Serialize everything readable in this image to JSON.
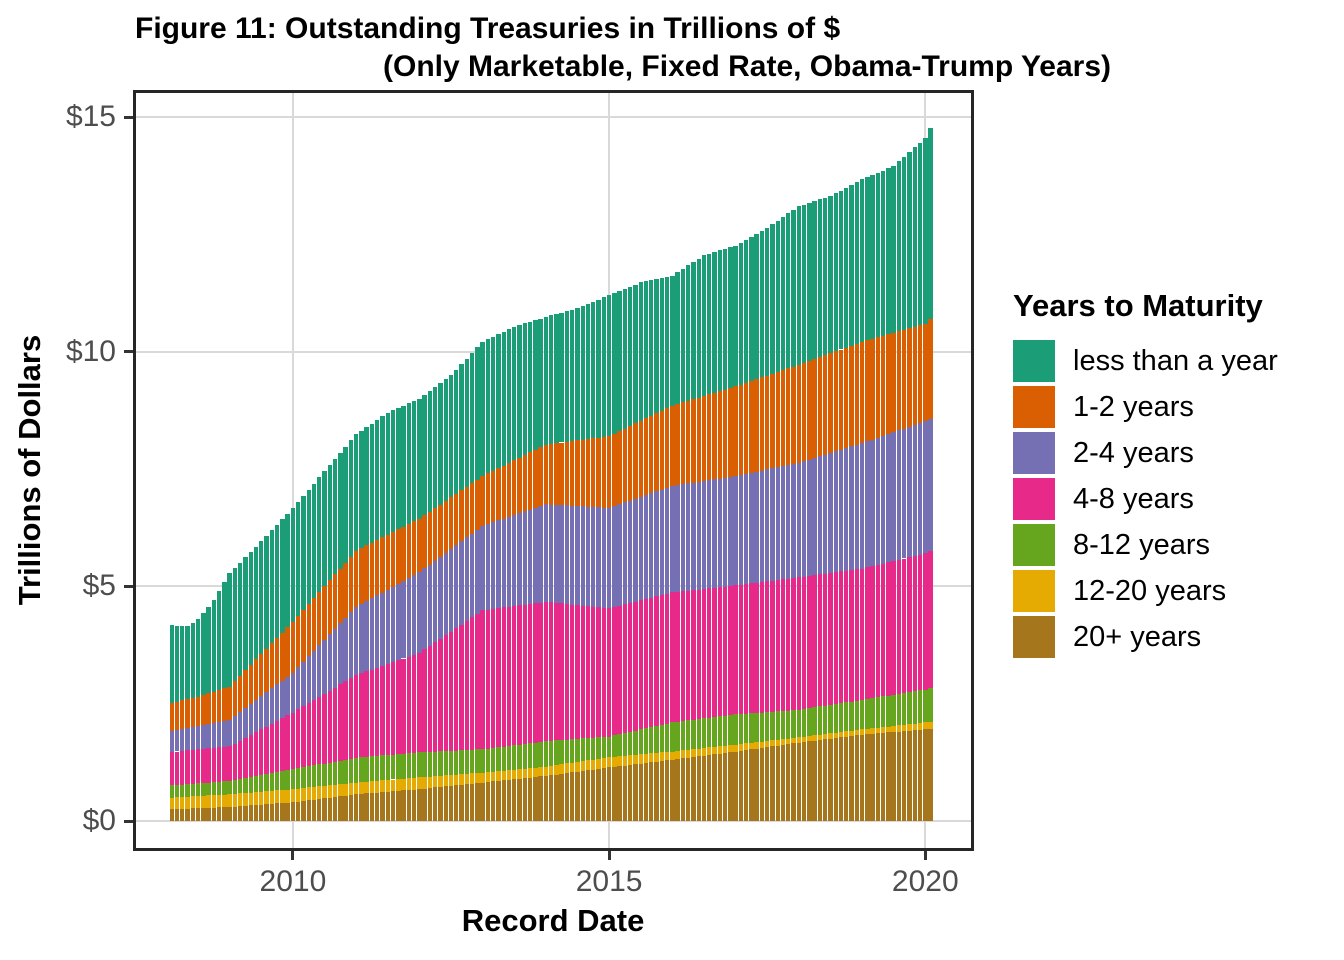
{
  "chart_data": {
    "type": "bar",
    "stacked": true,
    "title_line1": "Figure 11: Outstanding Treasuries in Trillions of $",
    "title_line2": "(Only Marketable, Fixed Rate, Obama-Trump Years)",
    "xlabel": "Record Date",
    "ylabel": "Trillions of Dollars",
    "units": "trillions of US dollars",
    "bar_interval": "monthly",
    "first_bar": "2008-02",
    "last_bar": "2020-02",
    "ylim": [
      0,
      15.6
    ],
    "grid": "major-only",
    "legend_title": "Years to Maturity",
    "legend_position": "right",
    "y_ticks": [
      {
        "value": 0,
        "label": "$0"
      },
      {
        "value": 5,
        "label": "$5"
      },
      {
        "value": 10,
        "label": "$10"
      },
      {
        "value": 15,
        "label": "$15"
      }
    ],
    "x_ticks": [
      {
        "date": "2010-01",
        "label": "2010"
      },
      {
        "date": "2015-01",
        "label": "2015"
      },
      {
        "date": "2020-01",
        "label": "2020"
      }
    ],
    "series_note": "series listed bottom-to-top of stack; anchors are [month, value-in-trillions]; monthly bars linearly interpolated between anchors; legend shows series top-to-bottom",
    "series": [
      {
        "name": "20-plus-years",
        "label": "20+ years",
        "color": "#A6761D",
        "anchors": [
          [
            "2008-02",
            0.25
          ],
          [
            "2009-01",
            0.3
          ],
          [
            "2010-01",
            0.4
          ],
          [
            "2011-01",
            0.57
          ],
          [
            "2012-01",
            0.68
          ],
          [
            "2013-01",
            0.82
          ],
          [
            "2014-01",
            0.96
          ],
          [
            "2015-01",
            1.14
          ],
          [
            "2016-01",
            1.31
          ],
          [
            "2017-01",
            1.48
          ],
          [
            "2018-01",
            1.67
          ],
          [
            "2019-01",
            1.84
          ],
          [
            "2020-01",
            1.95
          ],
          [
            "2020-02",
            1.96
          ]
        ]
      },
      {
        "name": "12-20-years",
        "label": "12-20 years",
        "color": "#E6AB02",
        "anchors": [
          [
            "2008-02",
            0.25
          ],
          [
            "2009-01",
            0.27
          ],
          [
            "2010-01",
            0.28
          ],
          [
            "2011-01",
            0.25
          ],
          [
            "2012-01",
            0.25
          ],
          [
            "2013-01",
            0.21
          ],
          [
            "2014-01",
            0.2
          ],
          [
            "2015-01",
            0.22
          ],
          [
            "2016-01",
            0.17
          ],
          [
            "2017-01",
            0.15
          ],
          [
            "2018-01",
            0.11
          ],
          [
            "2019-01",
            0.11
          ],
          [
            "2020-01",
            0.15
          ],
          [
            "2020-02",
            0.16
          ]
        ]
      },
      {
        "name": "8-12-years",
        "label": "8-12 years",
        "color": "#66A61E",
        "anchors": [
          [
            "2008-02",
            0.26
          ],
          [
            "2009-01",
            0.28
          ],
          [
            "2010-01",
            0.42
          ],
          [
            "2011-01",
            0.53
          ],
          [
            "2012-01",
            0.53
          ],
          [
            "2013-01",
            0.5
          ],
          [
            "2014-01",
            0.54
          ],
          [
            "2015-01",
            0.44
          ],
          [
            "2016-01",
            0.62
          ],
          [
            "2017-01",
            0.64
          ],
          [
            "2018-01",
            0.59
          ],
          [
            "2019-01",
            0.63
          ],
          [
            "2020-01",
            0.7
          ],
          [
            "2020-02",
            0.72
          ]
        ]
      },
      {
        "name": "4-8-years",
        "label": "4-8 years",
        "color": "#E7298A",
        "anchors": [
          [
            "2008-02",
            0.71
          ],
          [
            "2009-01",
            0.74
          ],
          [
            "2010-01",
            1.21
          ],
          [
            "2011-01",
            1.76
          ],
          [
            "2012-01",
            2.12
          ],
          [
            "2013-01",
            2.96
          ],
          [
            "2014-01",
            2.97
          ],
          [
            "2015-01",
            2.73
          ],
          [
            "2016-01",
            2.77
          ],
          [
            "2017-01",
            2.75
          ],
          [
            "2018-01",
            2.82
          ],
          [
            "2019-01",
            2.8
          ],
          [
            "2020-01",
            2.9
          ],
          [
            "2020-02",
            2.92
          ]
        ]
      },
      {
        "name": "2-4-years",
        "label": "2-4 years",
        "color": "#7570B3",
        "anchors": [
          [
            "2008-02",
            0.45
          ],
          [
            "2009-01",
            0.57
          ],
          [
            "2010-01",
            0.85
          ],
          [
            "2011-01",
            1.45
          ],
          [
            "2012-01",
            1.72
          ],
          [
            "2013-01",
            1.8
          ],
          [
            "2014-01",
            2.08
          ],
          [
            "2015-01",
            2.14
          ],
          [
            "2016-01",
            2.27
          ],
          [
            "2017-01",
            2.33
          ],
          [
            "2018-01",
            2.44
          ],
          [
            "2019-01",
            2.67
          ],
          [
            "2020-01",
            2.82
          ],
          [
            "2020-02",
            2.8
          ]
        ]
      },
      {
        "name": "1-2-years",
        "label": "1-2 years",
        "color": "#D95F02",
        "anchors": [
          [
            "2008-02",
            0.6
          ],
          [
            "2008-07",
            0.62
          ],
          [
            "2009-01",
            0.7
          ],
          [
            "2009-07",
            0.9
          ],
          [
            "2010-01",
            1.08
          ],
          [
            "2011-01",
            1.2
          ],
          [
            "2012-01",
            1.14
          ],
          [
            "2013-01",
            1.06
          ],
          [
            "2014-01",
            1.27
          ],
          [
            "2015-01",
            1.53
          ],
          [
            "2016-01",
            1.71
          ],
          [
            "2017-01",
            1.91
          ],
          [
            "2018-01",
            2.09
          ],
          [
            "2019-01",
            2.16
          ],
          [
            "2020-01",
            2.08
          ],
          [
            "2020-02",
            2.13
          ]
        ]
      },
      {
        "name": "less-than-a-year",
        "label": "less than a year",
        "color": "#1B9E77",
        "anchors": [
          [
            "2008-02",
            1.65
          ],
          [
            "2008-05",
            1.55
          ],
          [
            "2008-07",
            1.65
          ],
          [
            "2008-10",
            1.95
          ],
          [
            "2009-01",
            2.42
          ],
          [
            "2009-07",
            2.4
          ],
          [
            "2010-01",
            2.43
          ],
          [
            "2010-07",
            2.45
          ],
          [
            "2011-01",
            2.48
          ],
          [
            "2011-07",
            2.6
          ],
          [
            "2012-01",
            2.56
          ],
          [
            "2012-07",
            2.6
          ],
          [
            "2013-01",
            2.86
          ],
          [
            "2013-07",
            2.85
          ],
          [
            "2014-01",
            2.72
          ],
          [
            "2014-07",
            2.82
          ],
          [
            "2015-01",
            3.0
          ],
          [
            "2015-07",
            2.95
          ],
          [
            "2016-01",
            2.77
          ],
          [
            "2016-07",
            3.0
          ],
          [
            "2017-01",
            3.0
          ],
          [
            "2017-07",
            3.15
          ],
          [
            "2018-01",
            3.38
          ],
          [
            "2018-07",
            3.35
          ],
          [
            "2019-01",
            3.46
          ],
          [
            "2019-07",
            3.55
          ],
          [
            "2020-01",
            3.95
          ],
          [
            "2020-02",
            4.07
          ]
        ]
      }
    ]
  }
}
